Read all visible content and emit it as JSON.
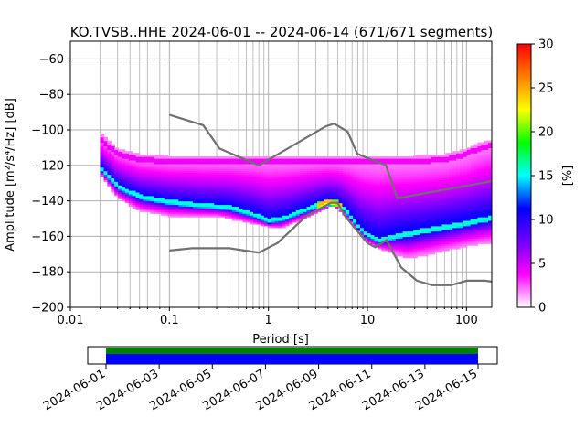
{
  "chart_data": {
    "type": "heatmap",
    "title": "KO.TVSB..HHE   2024-06-01 -- 2024-06-14  (671/671 segments)",
    "xlabel": "Period [s]",
    "ylabel": "Amplitude [m²/s⁴/Hz] [dB]",
    "x_scale": "log",
    "xlim": [
      0.01,
      180
    ],
    "ylim": [
      -200,
      -50
    ],
    "x_ticks": [
      0.01,
      0.1,
      1,
      10,
      100
    ],
    "x_tick_labels": [
      "0.01",
      "0.1",
      "1",
      "10",
      "100"
    ],
    "y_ticks": [
      -200,
      -180,
      -160,
      -140,
      -120,
      -100,
      -80,
      -60
    ],
    "y_tick_labels": [
      "−200",
      "−180",
      "−160",
      "−140",
      "−120",
      "−100",
      "−80",
      "−60"
    ],
    "grid": true,
    "colorbar": {
      "label": "[%]",
      "range": [
        0,
        30
      ],
      "ticks": [
        0,
        5,
        10,
        15,
        20,
        25,
        30
      ],
      "tick_labels": [
        "0",
        "5",
        "10",
        "15",
        "20",
        "25",
        "30"
      ],
      "colors": [
        "#ffffff",
        "#ff00ff",
        "#7000ff",
        "#0000ff",
        "#00ffff",
        "#00ff00",
        "#ffff00",
        "#ff7f00",
        "#ff0000"
      ]
    },
    "noise_models": {
      "color": "#707070",
      "high_noise_model": [
        [
          0.1,
          -91.5
        ],
        [
          0.22,
          -97.4
        ],
        [
          0.32,
          -110.5
        ],
        [
          0.8,
          -120
        ],
        [
          3.8,
          -98
        ],
        [
          4.6,
          -96.5
        ],
        [
          6.3,
          -101
        ],
        [
          7.9,
          -113.5
        ],
        [
          15.4,
          -120
        ],
        [
          20,
          -138.5
        ],
        [
          354.8,
          -126
        ]
      ],
      "low_noise_model": [
        [
          0.1,
          -168
        ],
        [
          0.17,
          -166.7
        ],
        [
          0.4,
          -166.7
        ],
        [
          0.8,
          -169.2
        ],
        [
          1.24,
          -163.7
        ],
        [
          2.4,
          -148.6
        ],
        [
          4.3,
          -141.1
        ],
        [
          5,
          -141.1
        ],
        [
          6,
          -149
        ],
        [
          10,
          -163.8
        ],
        [
          12,
          -166.2
        ],
        [
          15.6,
          -162.1
        ],
        [
          21.9,
          -177.5
        ],
        [
          31.6,
          -185
        ],
        [
          45,
          -187.5
        ],
        [
          70,
          -187.5
        ],
        [
          101,
          -185
        ],
        [
          154,
          -185
        ],
        [
          328,
          -187.5
        ]
      ]
    },
    "mode_curve": [
      [
        0.02,
        -122
      ],
      [
        0.03,
        -132
      ],
      [
        0.05,
        -138
      ],
      [
        0.1,
        -141
      ],
      [
        0.2,
        -143
      ],
      [
        0.4,
        -144
      ],
      [
        0.7,
        -148
      ],
      [
        1,
        -152
      ],
      [
        1.5,
        -150
      ],
      [
        2.5,
        -145
      ],
      [
        4,
        -141
      ],
      [
        5,
        -142
      ],
      [
        6,
        -146
      ],
      [
        9,
        -158
      ],
      [
        13,
        -163
      ],
      [
        20,
        -160
      ],
      [
        40,
        -157
      ],
      [
        100,
        -153
      ],
      [
        180,
        -150
      ]
    ],
    "upper_envelope": [
      [
        0.02,
        -104
      ],
      [
        0.03,
        -113
      ],
      [
        0.05,
        -116
      ],
      [
        0.1,
        -117
      ],
      [
        0.3,
        -117
      ],
      [
        1,
        -117
      ],
      [
        3,
        -117
      ],
      [
        10,
        -117
      ],
      [
        30,
        -117
      ],
      [
        60,
        -116
      ],
      [
        100,
        -113
      ],
      [
        130,
        -110
      ],
      [
        180,
        -108
      ]
    ],
    "lower_envelope": [
      [
        0.02,
        -124
      ],
      [
        0.03,
        -138
      ],
      [
        0.05,
        -145
      ],
      [
        0.1,
        -148
      ],
      [
        0.3,
        -148
      ],
      [
        0.8,
        -153
      ],
      [
        1.3,
        -155
      ],
      [
        2.5,
        -149
      ],
      [
        4.5,
        -142
      ],
      [
        6,
        -148
      ],
      [
        10,
        -163
      ],
      [
        14,
        -167
      ],
      [
        25,
        -172
      ],
      [
        40,
        -170
      ],
      [
        100,
        -165
      ],
      [
        180,
        -163
      ]
    ]
  },
  "timeline": {
    "date_labels": [
      "2024-06-01",
      "2024-06-03",
      "2024-06-05",
      "2024-06-07",
      "2024-06-09",
      "2024-06-11",
      "2024-06-13",
      "2024-06-15"
    ],
    "data_color": "#0000ff",
    "marker_color": "#008000",
    "extent_days": [
      0,
      14
    ]
  }
}
